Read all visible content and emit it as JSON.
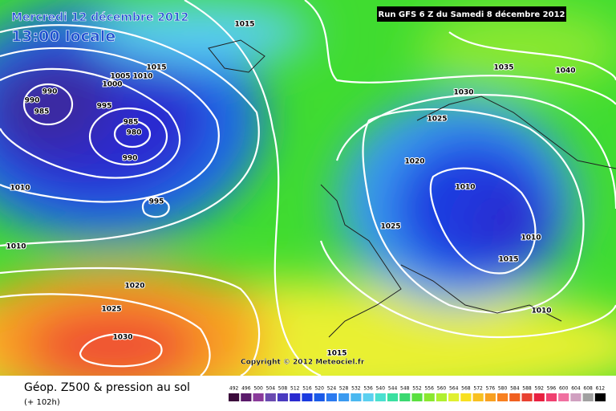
{
  "header": {
    "title": "Mercredi 12 décembre 2012",
    "time": "13:00 locale",
    "run": "Run GFS 6 Z du Samedi 8 décembre 2012"
  },
  "isobar_labels": [
    1015,
    1015,
    1005,
    1010,
    1000,
    990,
    990,
    985,
    995,
    985,
    980,
    990,
    1010,
    995,
    1010,
    1020,
    1025,
    1030,
    1015,
    1035,
    1040,
    1030,
    1025,
    1020,
    1010,
    1025,
    1010,
    1015,
    1010
  ],
  "copyright": "Copyright © 2012 Meteociel.fr",
  "footer": {
    "title": "Géop. Z500 & pression au sol",
    "lead": "(+ 102h)"
  },
  "legend": {
    "ticks": [
      492,
      496,
      500,
      504,
      508,
      512,
      516,
      520,
      524,
      528,
      532,
      536,
      540,
      544,
      548,
      552,
      556,
      560,
      564,
      568,
      572,
      576,
      580,
      584,
      588,
      592,
      596,
      600,
      604,
      608,
      612
    ],
    "colors": [
      "#3a0a3a",
      "#5a1a6a",
      "#8a3a9a",
      "#6a4ab0",
      "#4a3ac0",
      "#2a2ad0",
      "#1a3ae0",
      "#1a5ae8",
      "#2a7af0",
      "#3a9af0",
      "#4ab8f0",
      "#5ad0f0",
      "#4ae0d0",
      "#3ae0a0",
      "#3ad870",
      "#5ae040",
      "#8ae830",
      "#b0f030",
      "#e0f030",
      "#f8e020",
      "#f8c020",
      "#f8a020",
      "#f88020",
      "#f06020",
      "#e84030",
      "#e82040",
      "#f04070",
      "#f070a0",
      "#d0a0c0",
      "#a0a0a0",
      "#000000"
    ]
  }
}
